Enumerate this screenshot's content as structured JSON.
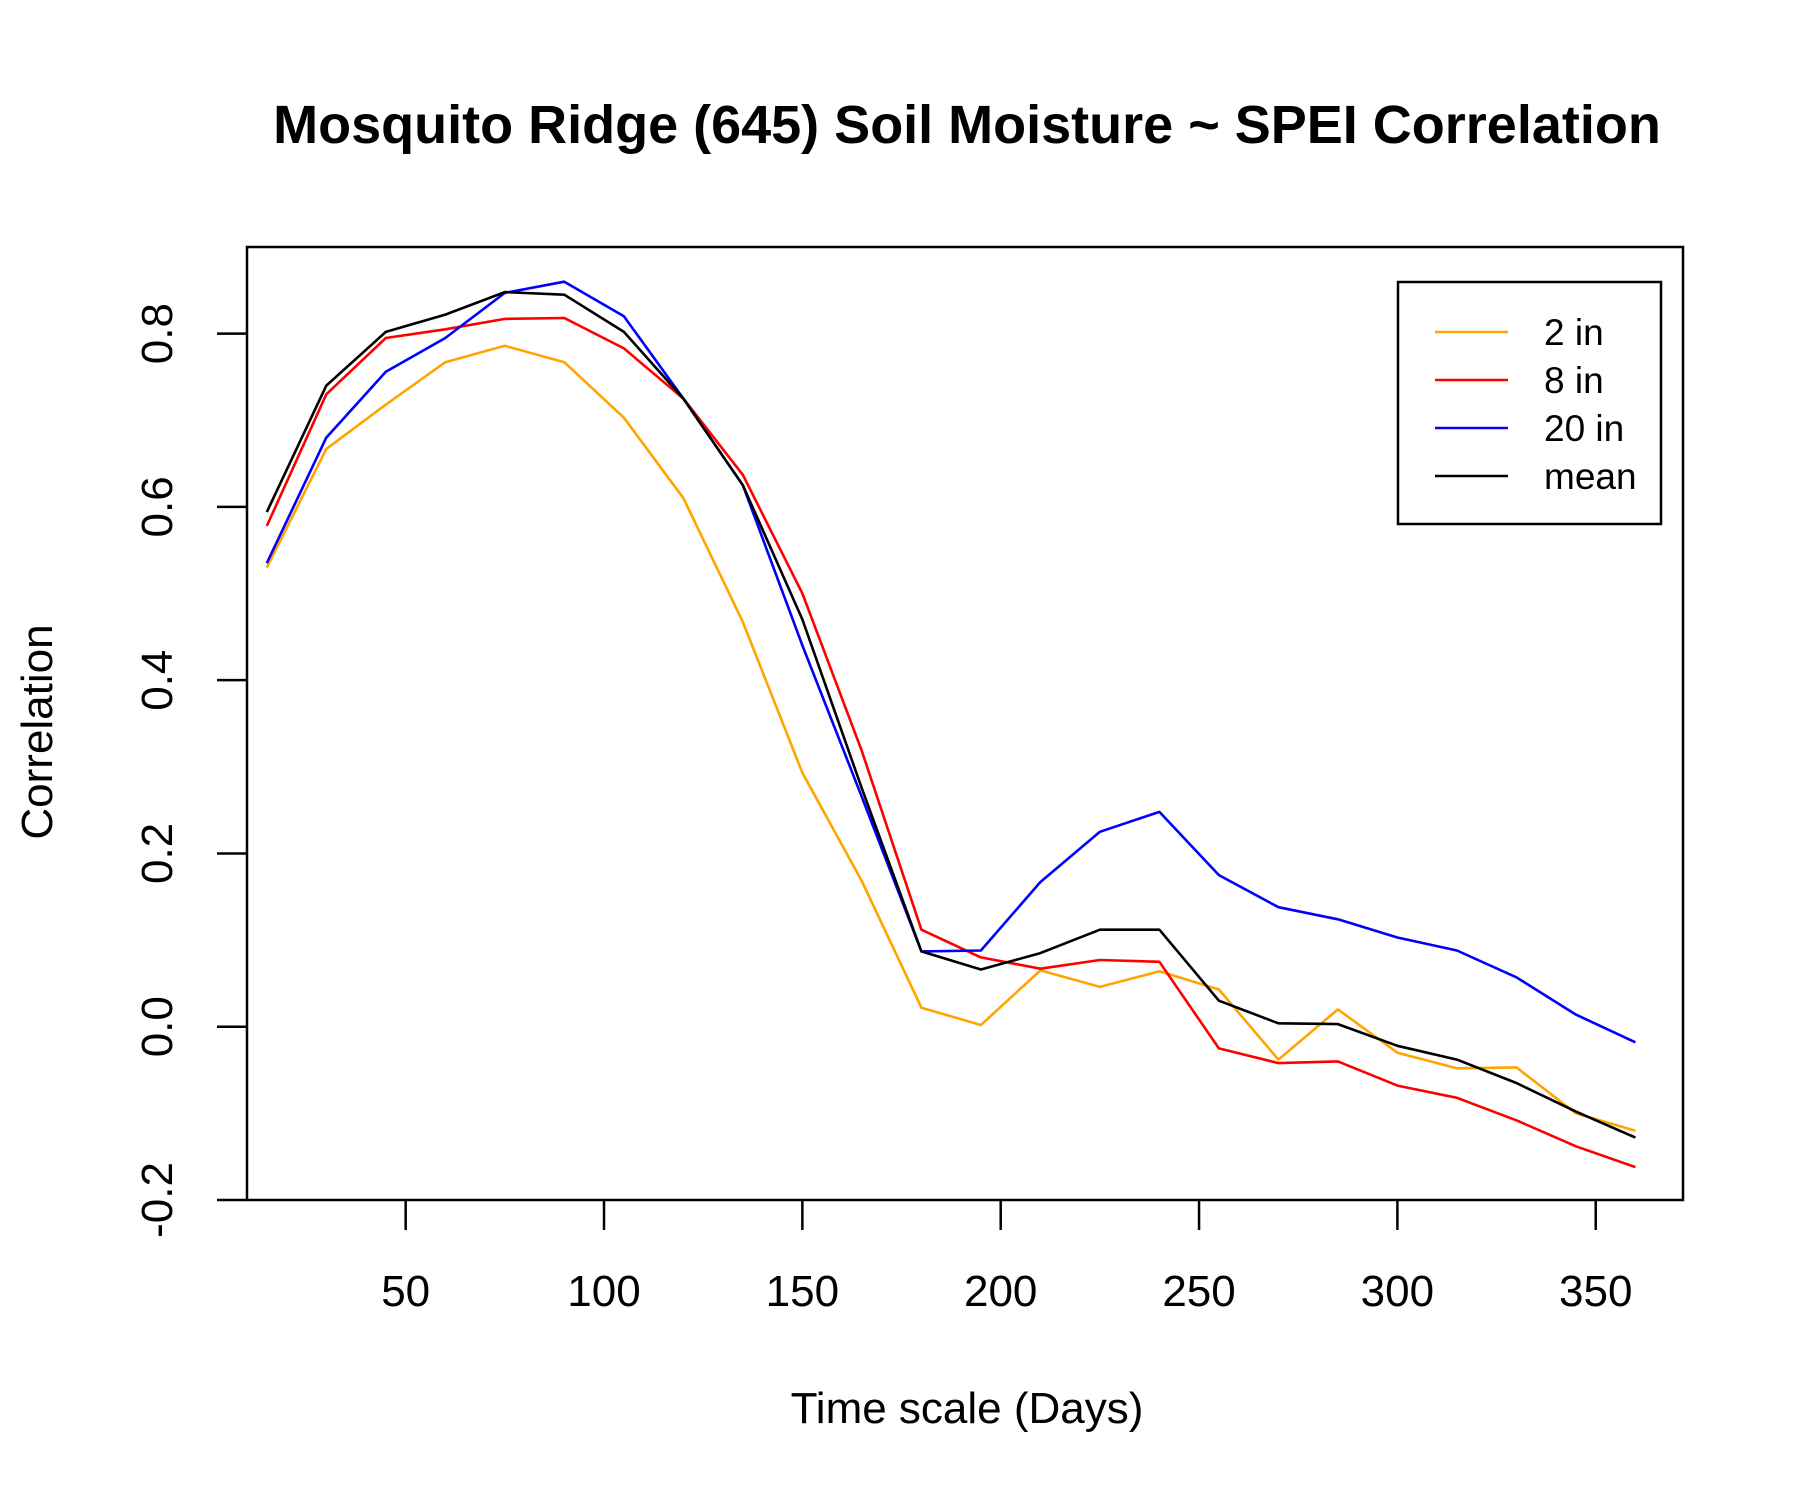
{
  "chart_data": {
    "type": "line",
    "title": "Mosquito Ridge (645) Soil Moisture ~ SPEI Correlation",
    "xlabel": "Time scale (Days)",
    "ylabel": "Correlation",
    "xlim": [
      10,
      372
    ],
    "ylim": [
      -0.2,
      0.9
    ],
    "xticks": [
      50,
      100,
      150,
      200,
      250,
      300,
      350
    ],
    "yticks": [
      -0.2,
      0.0,
      0.2,
      0.4,
      0.6,
      0.8
    ],
    "xtick_labels": [
      "50",
      "100",
      "150",
      "200",
      "250",
      "300",
      "350"
    ],
    "ytick_labels": [
      "-0.2",
      "0.0",
      "0.2",
      "0.4",
      "0.6",
      "0.8"
    ],
    "grid": false,
    "legend_position": "top-right",
    "x": [
      15,
      30,
      45,
      60,
      75,
      90,
      105,
      120,
      135,
      150,
      165,
      180,
      195,
      210,
      225,
      240,
      255,
      270,
      285,
      300,
      315,
      330,
      345,
      360
    ],
    "series": [
      {
        "name": "2 in",
        "color": "#FFA500",
        "values": [
          0.53,
          0.667,
          0.718,
          0.767,
          0.786,
          0.767,
          0.703,
          0.61,
          0.467,
          0.293,
          0.168,
          0.022,
          0.002,
          0.065,
          0.046,
          0.064,
          0.043,
          -0.038,
          0.02,
          -0.03,
          -0.048,
          -0.047,
          -0.1,
          -0.12
        ]
      },
      {
        "name": "8 in",
        "color": "#FF0000",
        "values": [
          0.578,
          0.73,
          0.795,
          0.805,
          0.817,
          0.818,
          0.783,
          0.725,
          0.637,
          0.5,
          0.318,
          0.112,
          0.08,
          0.067,
          0.077,
          0.075,
          -0.025,
          -0.042,
          -0.04,
          -0.068,
          -0.082,
          -0.108,
          -0.138,
          -0.162
        ]
      },
      {
        "name": "20 in",
        "color": "#0000FF",
        "values": [
          0.535,
          0.68,
          0.756,
          0.795,
          0.847,
          0.86,
          0.82,
          0.725,
          0.625,
          0.44,
          0.265,
          0.087,
          0.088,
          0.167,
          0.225,
          0.248,
          0.175,
          0.138,
          0.124,
          0.103,
          0.088,
          0.057,
          0.014,
          -0.018
        ]
      },
      {
        "name": "mean",
        "color": "#000000",
        "values": [
          0.594,
          0.74,
          0.802,
          0.822,
          0.848,
          0.845,
          0.802,
          0.725,
          0.625,
          0.47,
          0.275,
          0.087,
          0.066,
          0.085,
          0.112,
          0.112,
          0.03,
          0.004,
          0.003,
          -0.022,
          -0.038,
          -0.065,
          -0.098,
          -0.128
        ]
      }
    ]
  }
}
